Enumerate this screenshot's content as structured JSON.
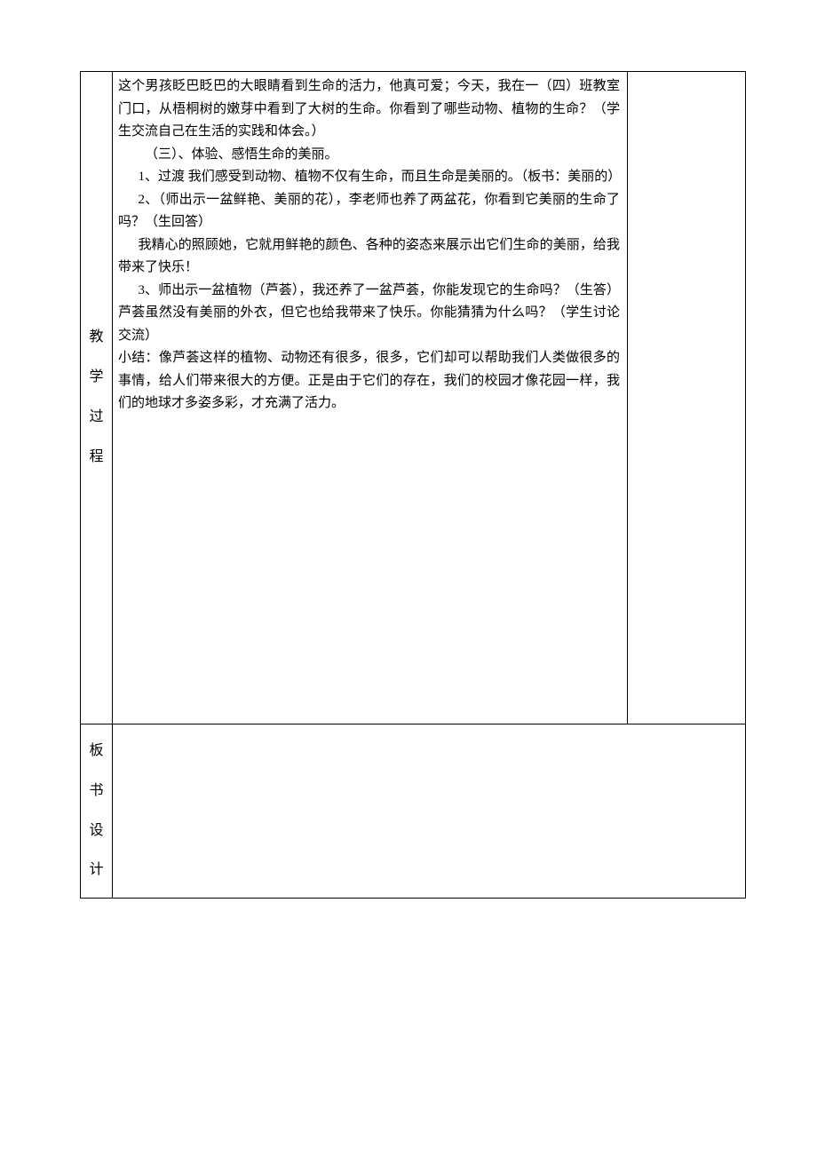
{
  "labels": {
    "process": "教\n学\n过\n程",
    "board": "板\n书\n设\n计"
  },
  "process": {
    "p1": "这个男孩眨巴眨巴的大眼睛看到生命的活力，他真可爱；今天，我在一（四）班教室门口，从梧桐树的嫩芽中看到了大树的生命。你看到了哪些动物、植物的生命？（学生交流自己在生活的实践和体会。）",
    "p2": "（三）、体验、感悟生命的美丽。",
    "p3": "1、过渡 我们感受到动物、植物不仅有生命，而且生命是美丽的。（板书：美丽的）",
    "p4": "2、（师出示一盆鲜艳、美丽的花），李老师也养了两盆花，你看到它美丽的生命了吗？（生回答）",
    "p5": "我精心的照顾她，它就用鲜艳的颜色、各种的姿态来展示出它们生命的美丽，给我带来了快乐！",
    "p6": "3、师出示一盆植物（芦荟），我还养了一盆芦荟，你能发现它的生命吗？（生答）芦荟虽然没有美丽的外衣，但它也给我带来了快乐。你能猜猜为什么吗？（学生讨论交流）",
    "p7": "小结：像芦荟这样的植物、动物还有很多，很多，它们却可以帮助我们人类做很多的事情，给人们带来很大的方便。正是由于它们的存在，我们的校园才像花园一样，我们的地球才多姿多彩，才充满了活力。"
  },
  "styles": {
    "bg": "#ffffff",
    "border": "#000000",
    "text": "#000000",
    "fontsize_body": 15,
    "fontsize_label": 16
  }
}
